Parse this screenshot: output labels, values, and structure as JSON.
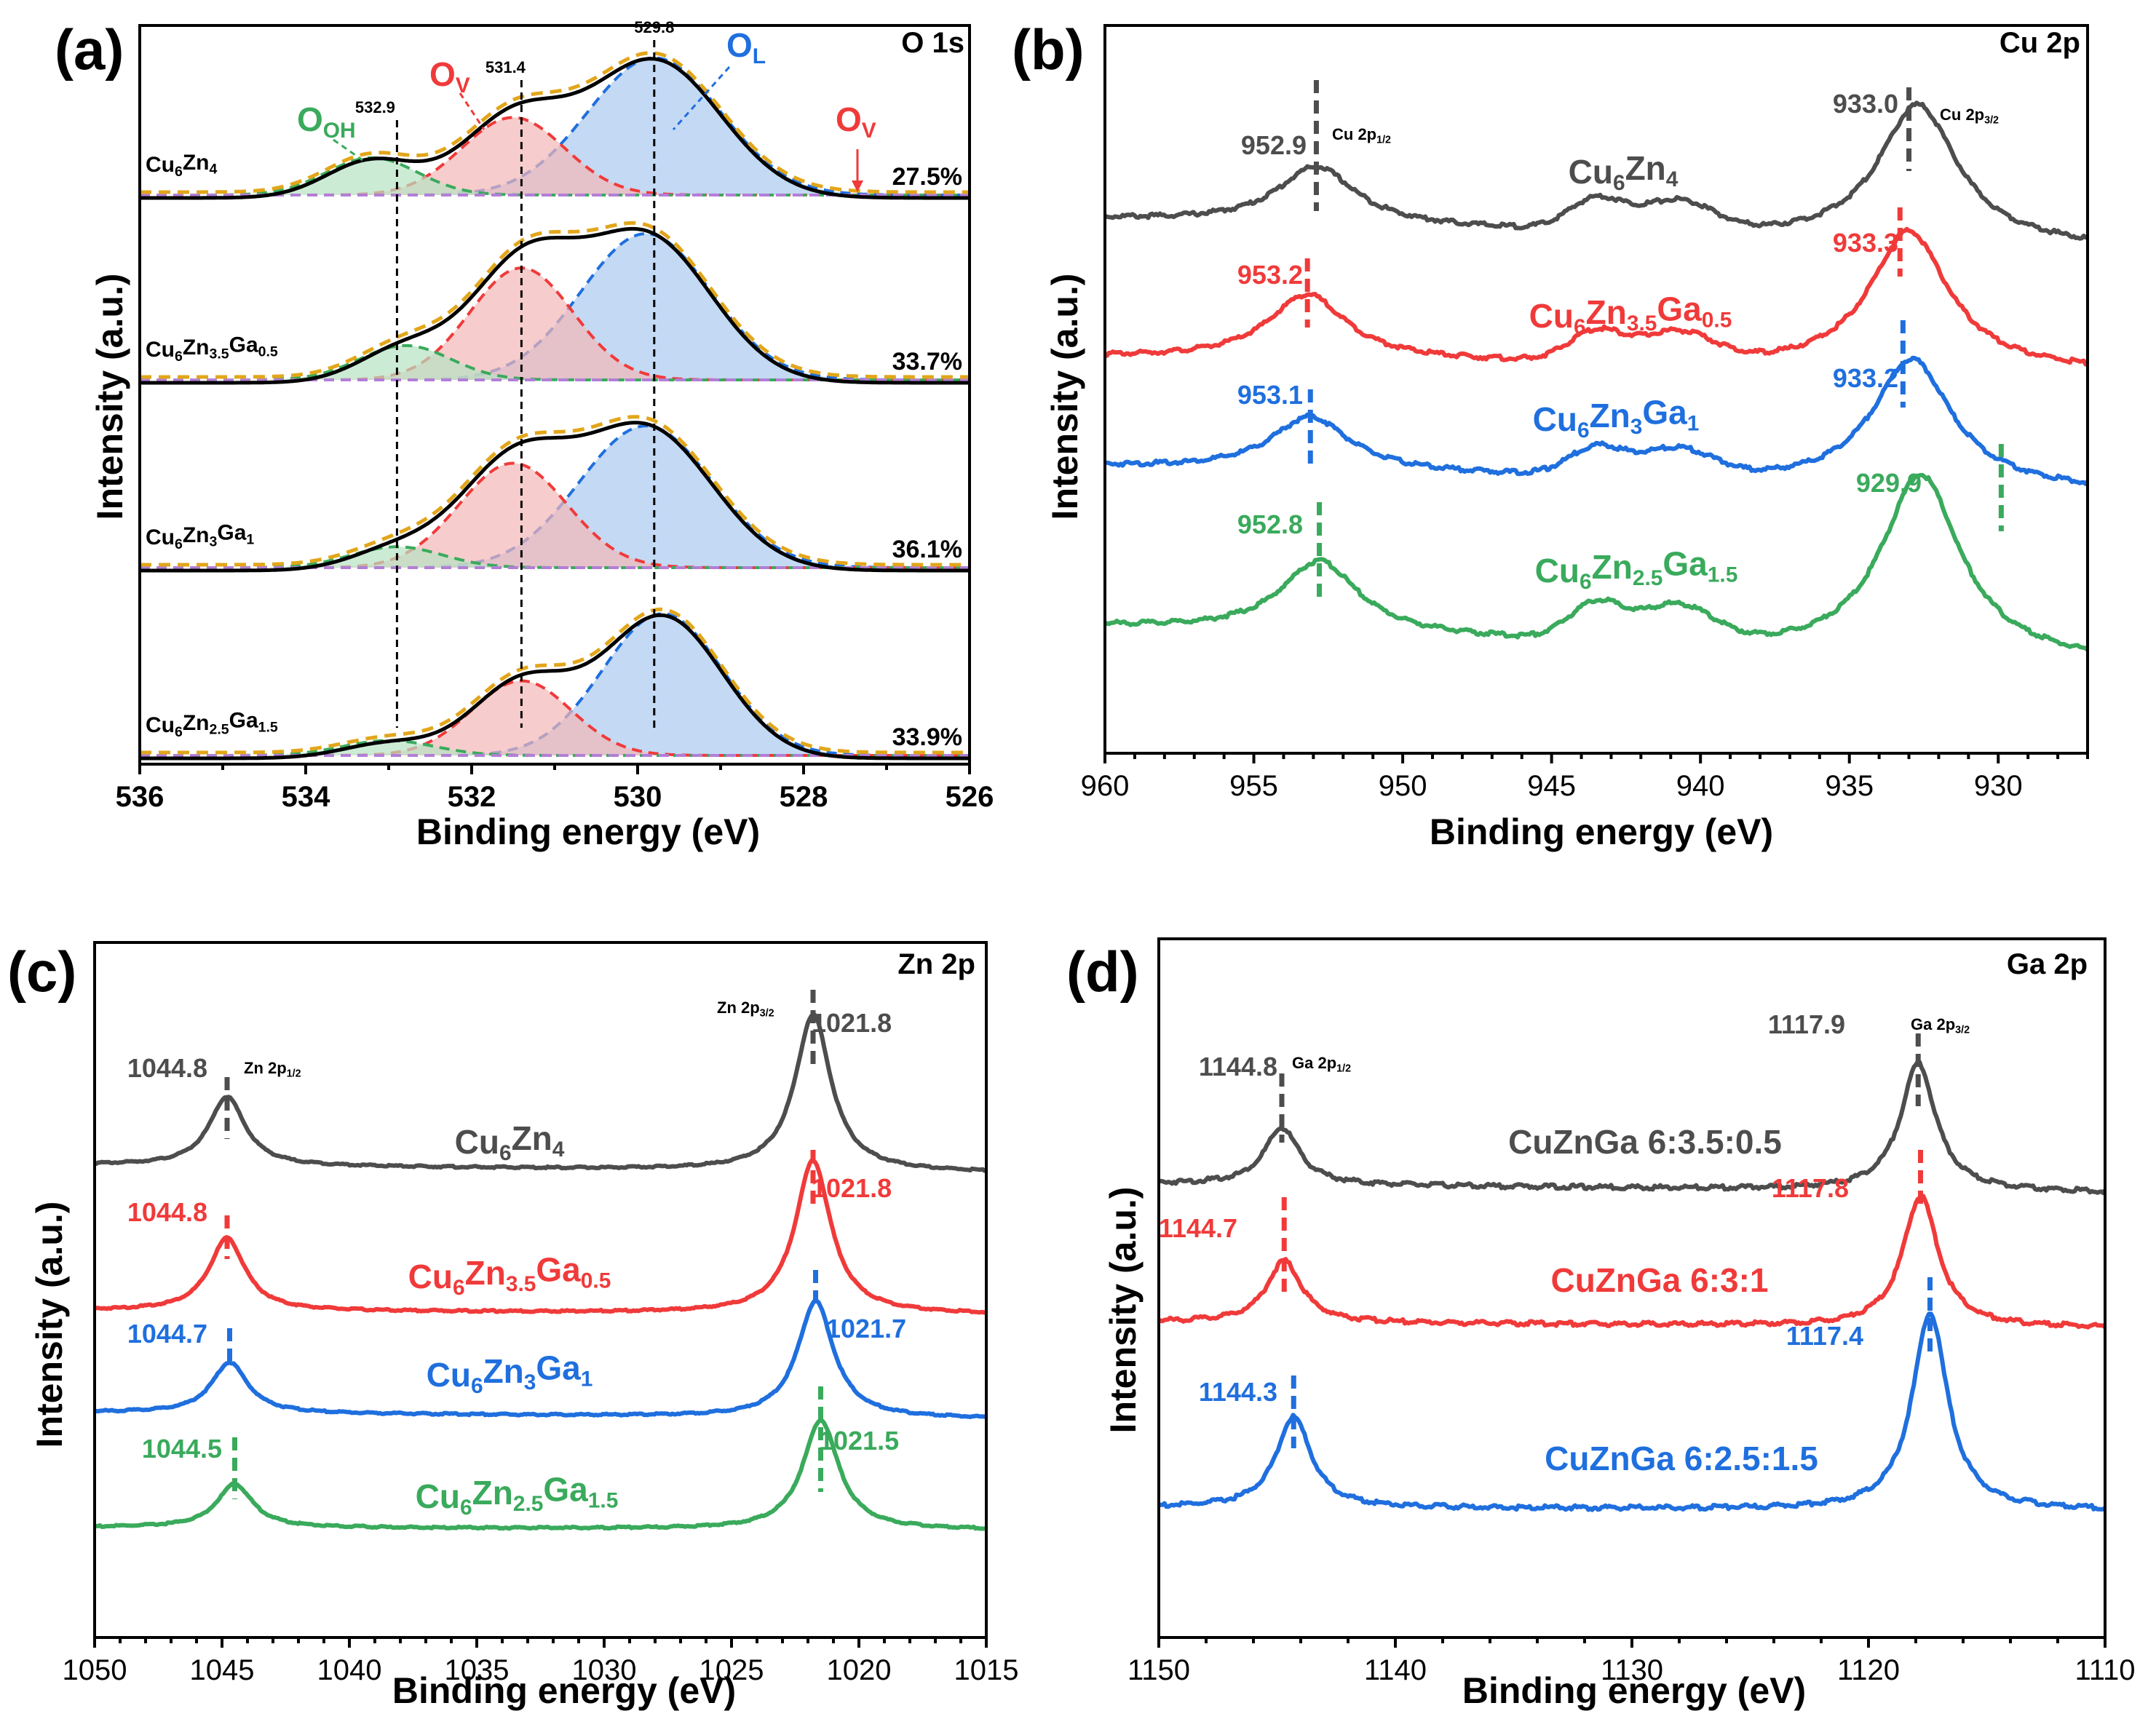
{
  "colors": {
    "gray": "#4d4d4d",
    "red": "#f03a3a",
    "blue": "#1f6fde",
    "green": "#3aaa5c",
    "fit_orange": "#e2a61b",
    "ol_fill": "#a9c9f0",
    "ov_fill": "#f3b7b7",
    "ooh_fill": "#b7e3c3",
    "baseline_purple": "#b27fd6"
  },
  "chart_data": [
    {
      "panel": "(a)",
      "type": "line",
      "title": "O 1s",
      "xlabel": "Binding energy (eV)",
      "ylabel": "Intensity (a.u.)",
      "xlim": [
        536,
        526
      ],
      "xticks": [
        536,
        534,
        532,
        530,
        528,
        526
      ],
      "peak_lines": [
        532.9,
        531.4,
        529.8
      ],
      "peak_line_labels": [
        "532.9",
        "531.4",
        "529.8"
      ],
      "component_labels": {
        "ooh": "O",
        "ooh_sub": "OH",
        "ov": "O",
        "ov_sub": "V",
        "ol": "O",
        "ol_sub": "L",
        "ov_arrow": "O",
        "ov_arrow_sub": "V"
      },
      "series": [
        {
          "name_parts": [
            "Cu",
            "6",
            "Zn",
            "4",
            "",
            ""
          ],
          "ov_percent": "27.5%",
          "components": {
            "ooh": {
              "center": 533.2,
              "amp": 0.25,
              "width": 0.55
            },
            "ov": {
              "center": 531.5,
              "amp": 0.52,
              "width": 0.62
            },
            "ol": {
              "center": 529.8,
              "amp": 0.92,
              "width": 0.8
            }
          }
        },
        {
          "name_parts": [
            "Cu",
            "6",
            "Zn",
            "3.5",
            "Ga",
            "0.5"
          ],
          "ov_percent": "33.7%",
          "components": {
            "ooh": {
              "center": 532.8,
              "amp": 0.23,
              "width": 0.55
            },
            "ov": {
              "center": 531.4,
              "amp": 0.75,
              "width": 0.62
            },
            "ol": {
              "center": 529.9,
              "amp": 0.98,
              "width": 0.78
            }
          }
        },
        {
          "name_parts": [
            "Cu",
            "6",
            "Zn",
            "3",
            "Ga",
            "1"
          ],
          "ov_percent": "36.1%",
          "components": {
            "ooh": {
              "center": 532.9,
              "amp": 0.14,
              "width": 0.55
            },
            "ov": {
              "center": 531.5,
              "amp": 0.7,
              "width": 0.65
            },
            "ol": {
              "center": 529.9,
              "amp": 0.95,
              "width": 0.8
            }
          }
        },
        {
          "name_parts": [
            "Cu",
            "6",
            "Zn",
            "2.5",
            "Ga",
            "1.5"
          ],
          "ov_percent": "33.9%",
          "components": {
            "ooh": {
              "center": 533.0,
              "amp": 0.1,
              "width": 0.55
            },
            "ov": {
              "center": 531.4,
              "amp": 0.5,
              "width": 0.6
            },
            "ol": {
              "center": 529.7,
              "amp": 0.95,
              "width": 0.72
            }
          }
        }
      ]
    },
    {
      "panel": "(b)",
      "type": "line",
      "title": "Cu 2p",
      "xlabel": "Binding energy (eV)",
      "ylabel": "Intensity (a.u.)",
      "xlim": [
        960,
        927
      ],
      "xticks": [
        960,
        955,
        950,
        945,
        940,
        935,
        930
      ],
      "annot_p12": "Cu 2p",
      "annot_p12_sub": "1/2",
      "annot_p32": "Cu 2p",
      "annot_p32_sub": "3/2",
      "series": [
        {
          "name_parts": [
            "Cu",
            "6",
            "Zn",
            "4",
            "",
            ""
          ],
          "color": "gray",
          "p12": 952.9,
          "p32": 933.0,
          "p12_label": "952.9",
          "p32_label": "933.0"
        },
        {
          "name_parts": [
            "Cu",
            "6",
            "Zn",
            "3.5",
            "Ga",
            "0.5"
          ],
          "color": "red",
          "p12": 953.2,
          "p32": 933.3,
          "p12_label": "953.2",
          "p32_label": "933.3"
        },
        {
          "name_parts": [
            "Cu",
            "6",
            "Zn",
            "3",
            "Ga",
            "1"
          ],
          "color": "blue",
          "p12": 953.1,
          "p32": 933.2,
          "p12_label": "953.1",
          "p32_label": "933.2"
        },
        {
          "name_parts": [
            "Cu",
            "6",
            "Zn",
            "2.5",
            "Ga",
            "1.5"
          ],
          "color": "green",
          "p12": 952.8,
          "p32": 929.9,
          "p12_label": "952.8",
          "p32_label": "929.9"
        }
      ]
    },
    {
      "panel": "(c)",
      "type": "line",
      "title": "Zn 2p",
      "xlabel": "Binding energy (eV)",
      "ylabel": "Intensity (a.u.)",
      "xlim": [
        1050,
        1015
      ],
      "xticks": [
        1050,
        1045,
        1040,
        1035,
        1030,
        1025,
        1020,
        1015
      ],
      "annot_p12": "Zn 2p",
      "annot_p12_sub": "1/2",
      "annot_p32": "Zn 2p",
      "annot_p32_sub": "3/2",
      "series": [
        {
          "name_parts": [
            "Cu",
            "6",
            "Zn",
            "4",
            "",
            ""
          ],
          "color": "gray",
          "p12": 1044.8,
          "p32": 1021.8,
          "p12_label": "1044.8",
          "p32_label": "1021.8"
        },
        {
          "name_parts": [
            "Cu",
            "6",
            "Zn",
            "3.5",
            "Ga",
            "0.5"
          ],
          "color": "red",
          "p12": 1044.8,
          "p32": 1021.8,
          "p12_label": "1044.8",
          "p32_label": "1021.8"
        },
        {
          "name_parts": [
            "Cu",
            "6",
            "Zn",
            "3",
            "Ga",
            "1"
          ],
          "color": "blue",
          "p12": 1044.7,
          "p32": 1021.7,
          "p12_label": "1044.7",
          "p32_label": "1021.7"
        },
        {
          "name_parts": [
            "Cu",
            "6",
            "Zn",
            "2.5",
            "Ga",
            "1.5"
          ],
          "color": "green",
          "p12": 1044.5,
          "p32": 1021.5,
          "p12_label": "1044.5",
          "p32_label": "1021.5"
        }
      ]
    },
    {
      "panel": "(d)",
      "type": "line",
      "title": "Ga 2p",
      "xlabel": "Binding energy (eV)",
      "ylabel": "Intensity (a.u.)",
      "xlim": [
        1150,
        1110
      ],
      "xticks": [
        1150,
        1140,
        1130,
        1120,
        1110
      ],
      "annot_p12": "Ga 2p",
      "annot_p12_sub": "1/2",
      "annot_p32": "Ga 2p",
      "annot_p32_sub": "3/2",
      "series": [
        {
          "name": "CuZnGa 6:3.5:0.5",
          "color": "gray",
          "p12": 1144.8,
          "p32": 1117.9,
          "p12_label": "1144.8",
          "p32_label": "1117.9"
        },
        {
          "name": "CuZnGa 6:3:1",
          "color": "red",
          "p12": 1144.7,
          "p32": 1117.8,
          "p12_label": "1144.7",
          "p32_label": "1117.8"
        },
        {
          "name": "CuZnGa 6:2.5:1.5",
          "color": "blue",
          "p12": 1144.3,
          "p32": 1117.4,
          "p12_label": "1144.3",
          "p32_label": "1117.4"
        }
      ]
    }
  ]
}
